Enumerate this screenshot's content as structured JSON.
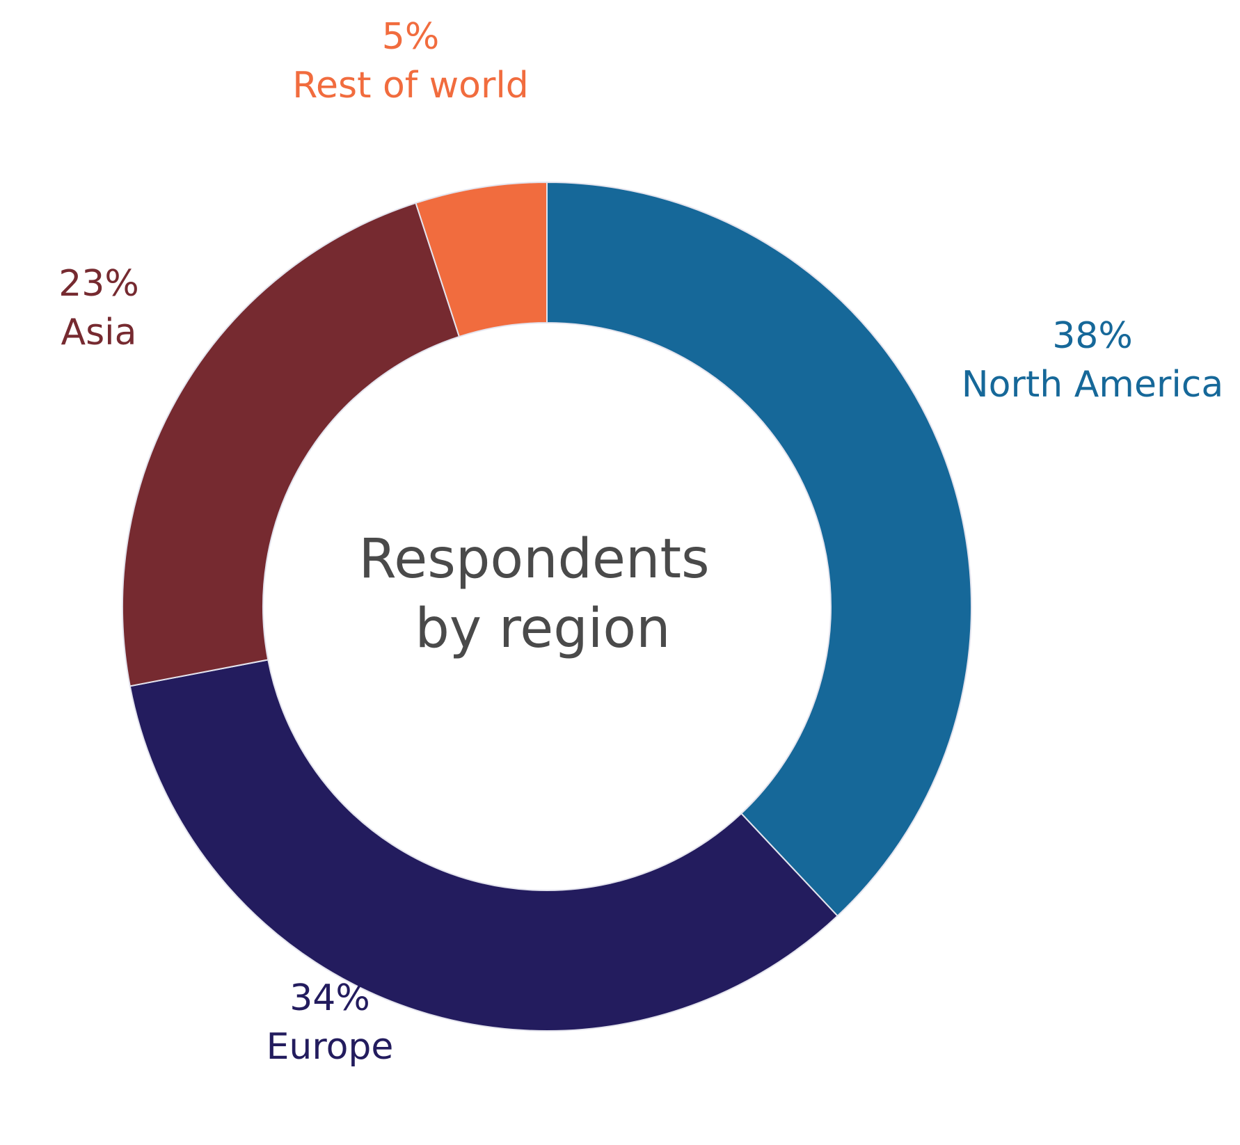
{
  "chart_data": {
    "type": "pie",
    "donut": true,
    "center_title": [
      "Respondents",
      "by region"
    ],
    "start_angle_deg": 0,
    "direction": "clockwise",
    "slices": [
      {
        "label": "North America",
        "value": 38,
        "value_label": "38%",
        "color": "#166899"
      },
      {
        "label": "Europe",
        "value": 34,
        "value_label": "34%",
        "color": "#231c5e"
      },
      {
        "label": "Asia",
        "value": 23,
        "value_label": "23%",
        "color": "#762a30"
      },
      {
        "label": "Rest of world",
        "value": 5,
        "value_label": "5%",
        "color": "#f16c3e"
      }
    ]
  }
}
